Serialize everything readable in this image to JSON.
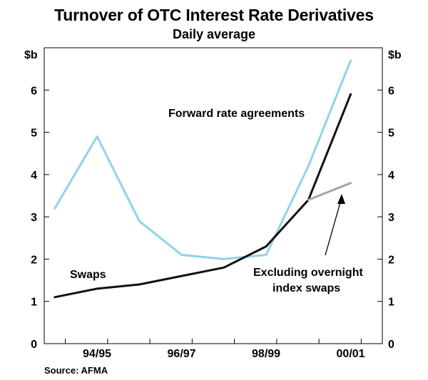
{
  "chart_data": {
    "type": "line",
    "title": "Turnover of OTC Interest Rate Derivatives",
    "subtitle": "Daily average",
    "y_unit_left": "$b",
    "y_unit_right": "$b",
    "ylim": [
      0,
      7
    ],
    "y_ticks": [
      0,
      1,
      2,
      3,
      4,
      5,
      6
    ],
    "x_tick_labels": [
      "94/95",
      "96/97",
      "98/99",
      "00/01"
    ],
    "x": [
      1993.75,
      1994.75,
      1995.75,
      1996.75,
      1997.75,
      1998.75,
      1999.75,
      2000.75
    ],
    "series": [
      {
        "name": "Forward rate agreements",
        "color": "#8fd3ea",
        "x": [
          1993.75,
          1994.75,
          1995.75,
          1996.75,
          1997.75,
          1998.75,
          1999.75,
          2000.75
        ],
        "values": [
          3.2,
          4.9,
          2.9,
          2.1,
          2.0,
          2.1,
          4.2,
          6.7
        ]
      },
      {
        "name": "Swaps",
        "color": "#111111",
        "x": [
          1993.75,
          1994.75,
          1995.75,
          1996.75,
          1997.75,
          1998.75,
          1999.75,
          2000.75
        ],
        "values": [
          1.1,
          1.3,
          1.4,
          1.6,
          1.8,
          2.3,
          3.4,
          5.9
        ]
      },
      {
        "name": "Excluding overnight index swaps",
        "color": "#a0a6ad",
        "x": [
          1999.75,
          2000.75
        ],
        "values": [
          3.4,
          3.8
        ]
      }
    ],
    "annotations": {
      "fra_label": "Forward rate agreements",
      "swaps_label": "Swaps",
      "ois_label_line1": "Excluding overnight",
      "ois_label_line2": "index swaps"
    },
    "source": "Source: AFMA"
  }
}
